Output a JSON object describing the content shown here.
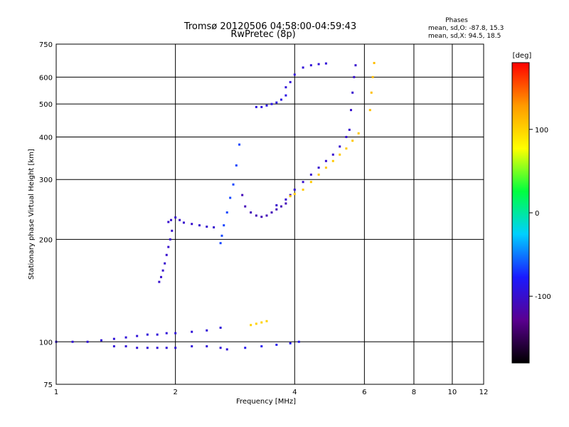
{
  "chart_data": {
    "type": "scatter",
    "title": "Tromsø 20120506 04:58:00-04:59:43",
    "subtitle": "RwPretec (8p)",
    "xlabel": "Frequency [MHz]",
    "ylabel": "Stationary phase Virtual Height [km]",
    "x_scale": "log",
    "y_scale": "log",
    "xlim": [
      1,
      12
    ],
    "ylim": [
      75,
      750
    ],
    "x_ticks": [
      1,
      2,
      4,
      6,
      8,
      10,
      12
    ],
    "x_tick_labels": [
      "1",
      "2",
      "4",
      "6",
      "8",
      "10",
      "12"
    ],
    "y_ticks": [
      75,
      100,
      200,
      300,
      400,
      500,
      600,
      750
    ],
    "y_tick_labels": [
      "75",
      "100",
      "200",
      "300",
      "400",
      "500",
      "600",
      "750"
    ],
    "grid": true,
    "phases_panel": {
      "title": "Phases",
      "line1": "mean, sd,O: -87.8, 15.3",
      "line2": "mean, sd,X:  94.5, 18.5"
    },
    "colorbar": {
      "label": "[deg]",
      "range": [
        -180,
        180
      ],
      "ticks": [
        100,
        0,
        -100
      ],
      "tick_labels": [
        "100",
        "0",
        "-100"
      ],
      "colormap": [
        "#000000",
        "#5a0090",
        "#1a1aff",
        "#00d0ff",
        "#00ff40",
        "#ffff00",
        "#ff9a00",
        "#ff0000"
      ]
    },
    "traces": [
      {
        "name": "",
        "x": [
          1.0,
          1.1,
          1.2,
          1.3,
          1.4,
          1.5,
          1.6,
          1.7,
          1.8,
          1.9,
          2.0,
          2.2,
          2.4,
          2.6
        ],
        "y": [
          100,
          100,
          100,
          101,
          102,
          103,
          104,
          105,
          105,
          106,
          106,
          107,
          108,
          110
        ],
        "phase": -95
      },
      {
        "name": "",
        "x": [
          1.4,
          1.5,
          1.6,
          1.7,
          1.8,
          1.9,
          2.0,
          2.2,
          2.4,
          2.6,
          2.7
        ],
        "y": [
          97,
          97,
          96,
          96,
          96,
          96,
          96,
          97,
          97,
          96,
          95
        ],
        "phase": -95
      },
      {
        "name": "",
        "x": [
          1.82,
          1.84,
          1.86,
          1.88,
          1.9,
          1.92,
          1.94,
          1.96
        ],
        "y": [
          150,
          155,
          162,
          170,
          180,
          190,
          200,
          212
        ],
        "phase": -100
      },
      {
        "name": "",
        "x": [
          1.92,
          1.95,
          2.0,
          2.05,
          2.1,
          2.2,
          2.3,
          2.4,
          2.5
        ],
        "y": [
          225,
          228,
          232,
          228,
          224,
          222,
          220,
          218,
          217
        ],
        "phase": -100
      },
      {
        "name": "",
        "x": [
          2.6,
          2.62,
          2.65,
          2.7,
          2.75,
          2.8,
          2.85,
          2.9
        ],
        "y": [
          195,
          205,
          220,
          240,
          265,
          290,
          330,
          380
        ],
        "phase": -65
      },
      {
        "name": "",
        "x": [
          2.95,
          3.0,
          3.1,
          3.2,
          3.3,
          3.4,
          3.5,
          3.6,
          3.7,
          3.8
        ],
        "y": [
          270,
          250,
          240,
          235,
          233,
          235,
          240,
          245,
          250,
          255
        ],
        "phase": -110
      },
      {
        "name": "",
        "x": [
          3.6,
          3.8,
          3.9,
          4.0,
          4.2,
          4.4,
          4.6,
          4.8,
          5.0,
          5.2,
          5.4
        ],
        "y": [
          252,
          262,
          270,
          280,
          295,
          310,
          325,
          340,
          355,
          375,
          400
        ],
        "phase": -100
      },
      {
        "name": "",
        "x": [
          3.9,
          4.0,
          4.2,
          4.4,
          4.6,
          4.8,
          5.0,
          5.2,
          5.4,
          5.6,
          5.8
        ],
        "y": [
          268,
          272,
          280,
          295,
          310,
          325,
          340,
          355,
          370,
          390,
          410
        ],
        "phase": 105
      },
      {
        "name": "",
        "x": [
          3.2,
          3.3,
          3.4,
          3.5,
          3.6,
          3.7,
          3.8
        ],
        "y": [
          490,
          490,
          495,
          500,
          505,
          515,
          530
        ],
        "phase": -90
      },
      {
        "name": "",
        "x": [
          3.8,
          3.9,
          4.0,
          4.2,
          4.4,
          4.6,
          4.8
        ],
        "y": [
          560,
          580,
          610,
          640,
          650,
          655,
          658
        ],
        "phase": -95
      },
      {
        "name": "",
        "x": [
          5.5,
          5.55,
          5.6,
          5.65,
          5.7
        ],
        "y": [
          420,
          480,
          540,
          600,
          650
        ],
        "phase": -100
      },
      {
        "name": "",
        "x": [
          3.1,
          3.2,
          3.3,
          3.4
        ],
        "y": [
          112,
          113,
          114,
          115
        ],
        "phase": 100
      },
      {
        "name": "",
        "x": [
          3.0,
          3.3,
          3.6,
          3.9,
          4.1
        ],
        "y": [
          96,
          97,
          98,
          99,
          100
        ],
        "phase": -85
      },
      {
        "name": "",
        "x": [
          6.2,
          6.25,
          6.3,
          6.35
        ],
        "y": [
          480,
          540,
          600,
          660
        ],
        "phase": 110
      }
    ]
  }
}
